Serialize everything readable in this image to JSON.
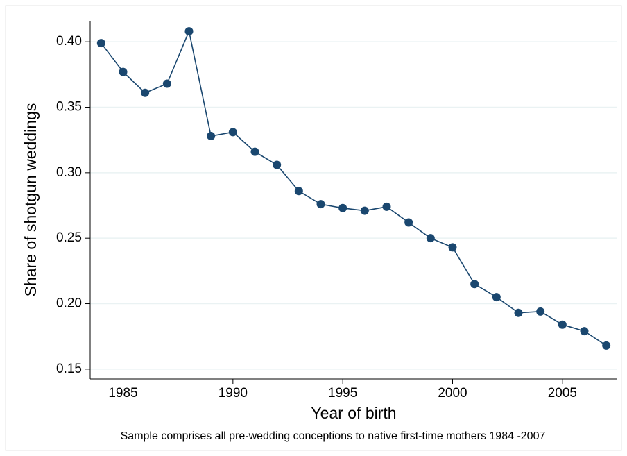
{
  "chart_data": {
    "type": "line",
    "x_label": "Year of birth",
    "y_label": "Share of shotgun weddings",
    "note": "Sample comprises all pre-wedding conceptions to native first-time mothers 1984 -2007",
    "x": [
      1984,
      1985,
      1986,
      1987,
      1988,
      1989,
      1990,
      1991,
      1992,
      1993,
      1994,
      1995,
      1996,
      1997,
      1998,
      1999,
      2000,
      2001,
      2002,
      2003,
      2004,
      2005,
      2006,
      2007
    ],
    "series": [
      {
        "name": null,
        "color": "#1a476f",
        "values": [
          0.399,
          0.377,
          0.361,
          0.368,
          0.408,
          0.328,
          0.331,
          0.316,
          0.306,
          0.286,
          0.276,
          0.273,
          0.271,
          0.274,
          0.262,
          0.25,
          0.243,
          0.215,
          0.205,
          0.193,
          0.194,
          0.184,
          0.179,
          0.168
        ]
      }
    ],
    "xlim": [
      1983.5,
      2007.5
    ],
    "xticks": [
      1985,
      1990,
      1995,
      2000,
      2005
    ],
    "ylim": [
      0.1425,
      0.416
    ],
    "yticks": [
      {
        "value": 0.15,
        "label": "0.15"
      },
      {
        "value": 0.2,
        "label": "0.20"
      },
      {
        "value": 0.25,
        "label": "0.25"
      },
      {
        "value": 0.3,
        "label": "0.30"
      },
      {
        "value": 0.35,
        "label": "0.35"
      },
      {
        "value": 0.4,
        "label": "0.40"
      }
    ],
    "grid": true
  }
}
